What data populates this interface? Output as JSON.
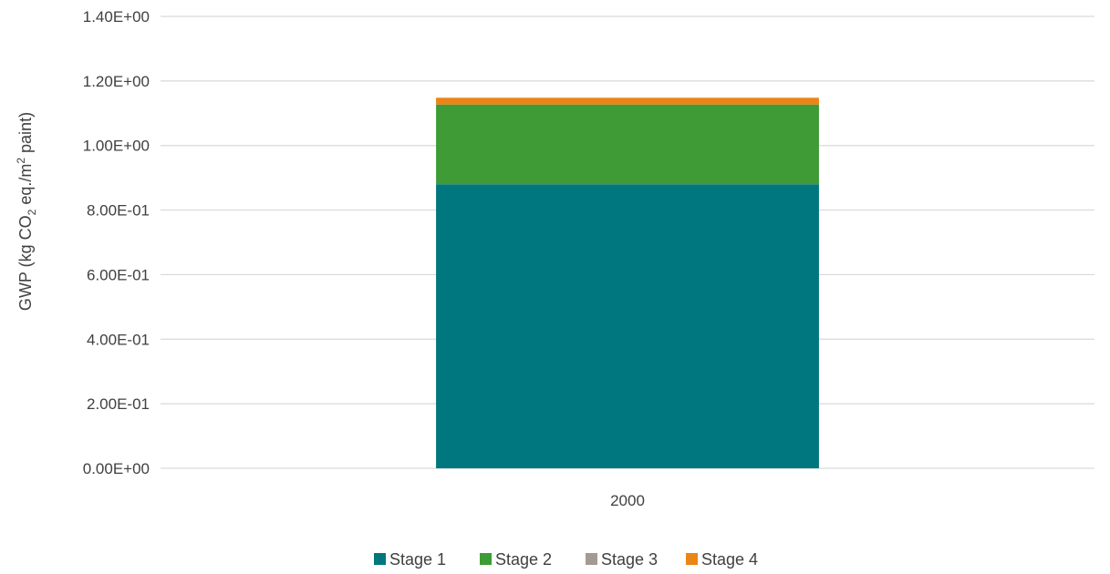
{
  "chart_data": {
    "type": "bar",
    "stacked": true,
    "categories": [
      "2000"
    ],
    "series": [
      {
        "name": "Stage 1",
        "values": [
          0.88
        ],
        "color": "#00767F"
      },
      {
        "name": "Stage 2",
        "values": [
          0.247
        ],
        "color": "#3E9B36"
      },
      {
        "name": "Stage 3",
        "values": [
          0.0
        ],
        "color": "#A69A90"
      },
      {
        "name": "Stage 4",
        "values": [
          0.021
        ],
        "color": "#EB8517"
      }
    ],
    "ylabel": {
      "prefix": "GWP (kg CO",
      "sub": "2",
      "mid": " eq./m",
      "sup": "2",
      "suffix": " paint)"
    },
    "ylim": [
      0,
      1.4
    ],
    "yticks": [
      "0.00E+00",
      "2.00E-01",
      "4.00E-01",
      "6.00E-01",
      "8.00E-01",
      "1.00E+00",
      "1.20E+00",
      "1.40E+00"
    ],
    "grid": true,
    "legend_position": "bottom"
  }
}
